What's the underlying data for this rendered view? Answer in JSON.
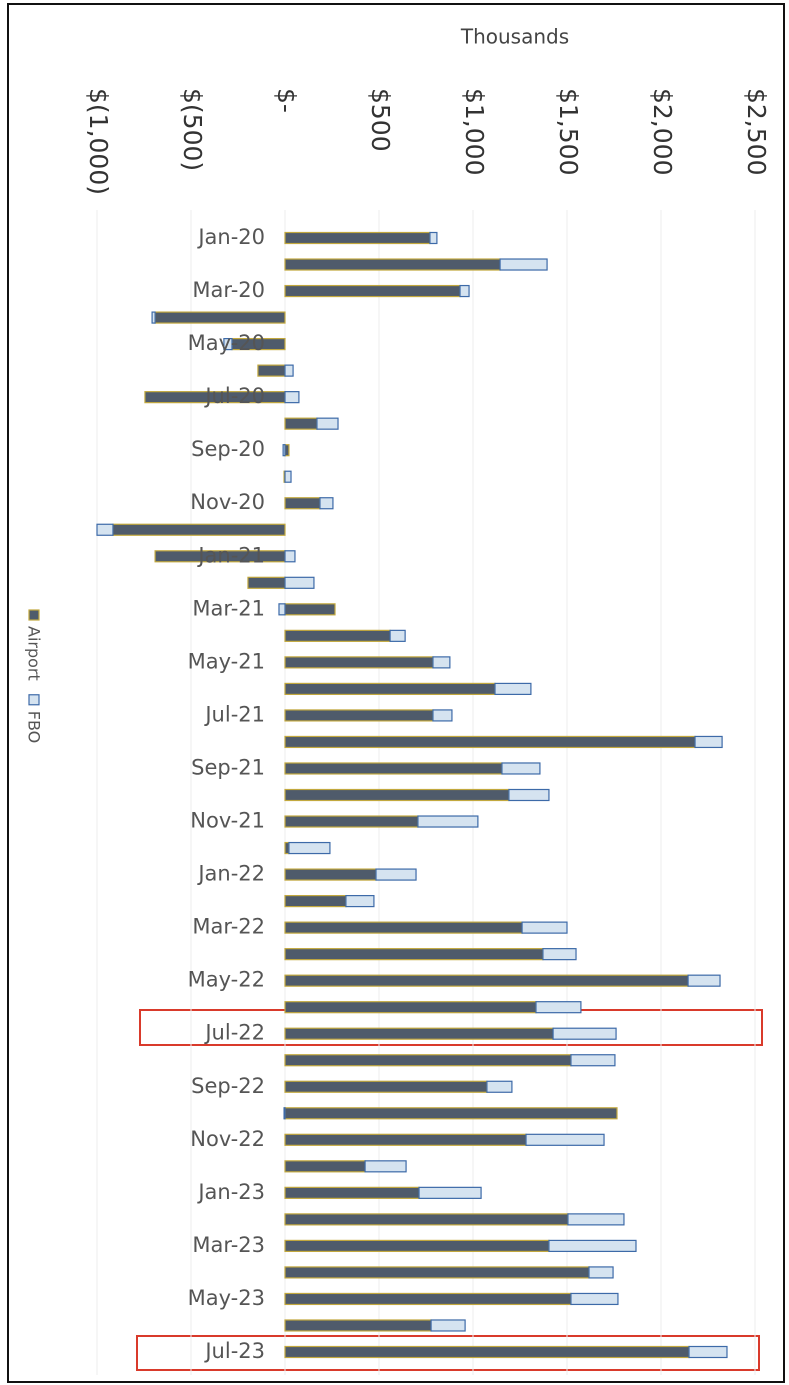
{
  "chart_data": {
    "type": "bar",
    "orientation": "horizontal",
    "stacked": true,
    "x_axis_label": "Thousands",
    "categories": [
      "Jan-20",
      null,
      "Mar-20",
      null,
      "May-20",
      null,
      "Jul-20",
      null,
      "Sep-20",
      null,
      "Nov-20",
      null,
      "Jan-21",
      null,
      "Mar-21",
      null,
      "May-21",
      null,
      "Jul-21",
      null,
      "Sep-21",
      null,
      "Nov-21",
      null,
      "Jan-22",
      null,
      "Mar-22",
      null,
      "May-22",
      null,
      "Jul-22",
      null,
      "Sep-22",
      null,
      "Nov-22",
      null,
      "Jan-23",
      null,
      "Mar-23",
      null,
      "May-23",
      null,
      "Jul-23"
    ],
    "series": [
      {
        "name": "Airport",
        "color": "#4f5b6b",
        "edge": "#c2a83e",
        "values": [
          771,
          1144,
          931,
          -691,
          -282,
          -144,
          -745,
          170,
          21,
          -5,
          186,
          -915,
          -691,
          -197,
          266,
          559,
          787,
          1117,
          787,
          2181,
          1154,
          1191,
          707,
          21,
          484,
          324,
          1261,
          1372,
          2144,
          1335,
          1426,
          1521,
          1074,
          1766,
          1282,
          426,
          713,
          1505,
          1404,
          1617,
          1521,
          777,
          2149
        ]
      },
      {
        "name": "FBO",
        "color": "#d5e3f0",
        "edge": "#3d6aa8",
        "values": [
          37,
          250,
          48,
          -16,
          -43,
          43,
          74,
          112,
          -10,
          32,
          69,
          -85,
          53,
          154,
          -32,
          80,
          90,
          191,
          101,
          144,
          202,
          213,
          319,
          218,
          213,
          149,
          239,
          176,
          170,
          239,
          335,
          234,
          133,
          -5,
          415,
          218,
          330,
          298,
          463,
          128,
          250,
          181,
          202
        ]
      }
    ],
    "xlim": [
      -1000,
      2500
    ],
    "xticks": [
      {
        "value": -1000,
        "label": "$(1,000)"
      },
      {
        "value": -500,
        "label": "$(500)"
      },
      {
        "value": 0,
        "label": "$-"
      },
      {
        "value": 500,
        "label": "$500"
      },
      {
        "value": 1000,
        "label": "$1,000"
      },
      {
        "value": 1500,
        "label": "$1,500"
      },
      {
        "value": 2000,
        "label": "$2,000"
      },
      {
        "value": 2500,
        "label": "$2,500"
      }
    ],
    "grid": true,
    "legend": "left"
  }
}
